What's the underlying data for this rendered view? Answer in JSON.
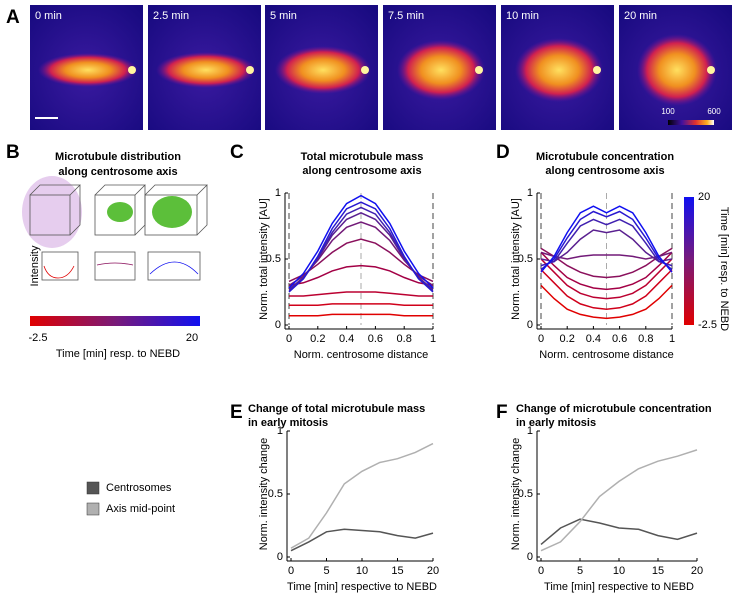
{
  "panel_a": {
    "label": "A",
    "frames": [
      "0 min",
      "2.5 min",
      "5 min",
      "7.5 min",
      "10 min",
      "20 min"
    ],
    "colorbar_ticks": [
      100,
      600
    ]
  },
  "panel_b": {
    "label": "B",
    "title_lines": [
      "Microtubule distribution",
      "along centrosome axis"
    ],
    "ylabel": "Intensity",
    "colorbar_ticks": [
      -2.5,
      20
    ],
    "colorbar_label": "Time [min] resp. to NEBD"
  },
  "chart_data": [
    {
      "type": "line",
      "panel": "C",
      "title_lines": [
        "Total microtubule mass",
        "along centrosome axis"
      ],
      "xlabel": "Norm. centrosome distance",
      "ylabel": "Norm. total intensity [AU]",
      "x": [
        0,
        0.1,
        0.2,
        0.3,
        0.4,
        0.5,
        0.6,
        0.7,
        0.8,
        0.9,
        1
      ],
      "xlim": [
        0,
        1
      ],
      "ylim": [
        0,
        1
      ],
      "xticks": [
        0,
        0.2,
        0.4,
        0.6,
        0.8,
        1
      ],
      "yticks": [
        0,
        0.5,
        1
      ],
      "vlines": [
        0,
        0.5,
        1
      ],
      "series": [
        {
          "color": "#e00000",
          "values": [
            0.07,
            0.07,
            0.07,
            0.08,
            0.08,
            0.08,
            0.08,
            0.08,
            0.07,
            0.07,
            0.07
          ]
        },
        {
          "color": "#d0001a",
          "values": [
            0.15,
            0.15,
            0.15,
            0.16,
            0.16,
            0.16,
            0.16,
            0.16,
            0.15,
            0.15,
            0.15
          ]
        },
        {
          "color": "#bb0030",
          "values": [
            0.22,
            0.22,
            0.23,
            0.24,
            0.25,
            0.25,
            0.25,
            0.24,
            0.23,
            0.22,
            0.22
          ]
        },
        {
          "color": "#a30045",
          "values": [
            0.3,
            0.32,
            0.36,
            0.41,
            0.44,
            0.45,
            0.44,
            0.41,
            0.36,
            0.32,
            0.3
          ]
        },
        {
          "color": "#8a105c",
          "values": [
            0.33,
            0.38,
            0.46,
            0.55,
            0.62,
            0.65,
            0.62,
            0.55,
            0.46,
            0.38,
            0.33
          ]
        },
        {
          "color": "#721a78",
          "values": [
            0.3,
            0.37,
            0.49,
            0.64,
            0.74,
            0.78,
            0.74,
            0.64,
            0.49,
            0.37,
            0.3
          ]
        },
        {
          "color": "#5a2090",
          "values": [
            0.27,
            0.36,
            0.5,
            0.68,
            0.8,
            0.85,
            0.8,
            0.68,
            0.5,
            0.36,
            0.27
          ]
        },
        {
          "color": "#4020b0",
          "values": [
            0.26,
            0.35,
            0.51,
            0.7,
            0.84,
            0.89,
            0.84,
            0.7,
            0.51,
            0.35,
            0.26
          ]
        },
        {
          "color": "#2818d0",
          "values": [
            0.25,
            0.35,
            0.52,
            0.73,
            0.88,
            0.93,
            0.88,
            0.73,
            0.52,
            0.35,
            0.25
          ]
        },
        {
          "color": "#1010f0",
          "values": [
            0.28,
            0.39,
            0.56,
            0.77,
            0.92,
            0.98,
            0.92,
            0.77,
            0.56,
            0.39,
            0.28
          ]
        }
      ]
    },
    {
      "type": "line",
      "panel": "D",
      "title_lines": [
        "Microtubule concentration",
        "along centrosome axis"
      ],
      "xlabel": "Norm. centrosome distance",
      "ylabel": "Norm. total intensity [AU]",
      "x": [
        0,
        0.1,
        0.2,
        0.3,
        0.4,
        0.5,
        0.6,
        0.7,
        0.8,
        0.9,
        1
      ],
      "xlim": [
        0,
        1
      ],
      "ylim": [
        0,
        1
      ],
      "xticks": [
        0,
        0.2,
        0.4,
        0.6,
        0.8,
        1
      ],
      "yticks": [
        0,
        0.5,
        1
      ],
      "vlines": [
        0,
        0.5,
        1
      ],
      "colorbar": {
        "label": "Time [min] resp. to NEBD",
        "ticks": [
          -2.5,
          20
        ]
      },
      "series": [
        {
          "color": "#e00000",
          "values": [
            0.3,
            0.2,
            0.12,
            0.08,
            0.06,
            0.05,
            0.06,
            0.08,
            0.12,
            0.2,
            0.3
          ]
        },
        {
          "color": "#d0001a",
          "values": [
            0.42,
            0.32,
            0.22,
            0.16,
            0.13,
            0.12,
            0.13,
            0.16,
            0.22,
            0.32,
            0.42
          ]
        },
        {
          "color": "#bb0030",
          "values": [
            0.5,
            0.4,
            0.3,
            0.24,
            0.21,
            0.2,
            0.21,
            0.24,
            0.3,
            0.4,
            0.5
          ]
        },
        {
          "color": "#a30045",
          "values": [
            0.55,
            0.45,
            0.36,
            0.31,
            0.28,
            0.27,
            0.28,
            0.31,
            0.36,
            0.45,
            0.55
          ]
        },
        {
          "color": "#8a105c",
          "values": [
            0.58,
            0.52,
            0.45,
            0.4,
            0.37,
            0.36,
            0.37,
            0.4,
            0.45,
            0.52,
            0.58
          ]
        },
        {
          "color": "#721a78",
          "values": [
            0.55,
            0.52,
            0.5,
            0.52,
            0.53,
            0.53,
            0.53,
            0.52,
            0.5,
            0.52,
            0.55
          ]
        },
        {
          "color": "#5a2090",
          "values": [
            0.5,
            0.48,
            0.55,
            0.65,
            0.72,
            0.7,
            0.72,
            0.65,
            0.55,
            0.48,
            0.5
          ]
        },
        {
          "color": "#4020b0",
          "values": [
            0.45,
            0.48,
            0.62,
            0.75,
            0.8,
            0.76,
            0.8,
            0.75,
            0.62,
            0.48,
            0.45
          ]
        },
        {
          "color": "#2818d0",
          "values": [
            0.42,
            0.5,
            0.66,
            0.8,
            0.86,
            0.82,
            0.86,
            0.8,
            0.66,
            0.5,
            0.42
          ]
        },
        {
          "color": "#1010f0",
          "values": [
            0.4,
            0.52,
            0.7,
            0.85,
            0.9,
            0.85,
            0.9,
            0.85,
            0.7,
            0.52,
            0.4
          ]
        }
      ]
    },
    {
      "type": "line",
      "panel": "E",
      "title_lines": [
        "Change of total microtubule mass",
        "in early mitosis"
      ],
      "xlabel": "Time [min] respective to NEBD",
      "ylabel": "Norm. intensity change",
      "x": [
        0,
        2.5,
        5,
        7.5,
        10,
        12.5,
        15,
        17.5,
        20
      ],
      "xlim": [
        0,
        20
      ],
      "ylim": [
        0,
        1
      ],
      "xticks": [
        0,
        5,
        10,
        15,
        20
      ],
      "yticks": [
        0,
        0.5,
        1
      ],
      "series": [
        {
          "name": "Centrosomes",
          "color": "#555555",
          "values": [
            0.05,
            0.12,
            0.2,
            0.22,
            0.21,
            0.2,
            0.17,
            0.15,
            0.19
          ]
        },
        {
          "name": "Axis mid-point",
          "color": "#b0b0b0",
          "values": [
            0.07,
            0.15,
            0.35,
            0.58,
            0.68,
            0.75,
            0.78,
            0.83,
            0.9
          ]
        }
      ]
    },
    {
      "type": "line",
      "panel": "F",
      "title_lines": [
        "Change of microtubule concentration",
        "in early mitosis"
      ],
      "xlabel": "Time [min] respective to NEBD",
      "ylabel": "Norm. intensity change",
      "x": [
        0,
        2.5,
        5,
        7.5,
        10,
        12.5,
        15,
        17.5,
        20
      ],
      "xlim": [
        0,
        20
      ],
      "ylim": [
        0,
        1
      ],
      "xticks": [
        0,
        5,
        10,
        15,
        20
      ],
      "yticks": [
        0,
        0.5,
        1
      ],
      "series": [
        {
          "color": "#555555",
          "values": [
            0.1,
            0.23,
            0.3,
            0.27,
            0.23,
            0.22,
            0.17,
            0.14,
            0.19
          ]
        },
        {
          "color": "#b0b0b0",
          "values": [
            0.05,
            0.12,
            0.28,
            0.48,
            0.6,
            0.7,
            0.76,
            0.8,
            0.85
          ]
        }
      ]
    }
  ]
}
